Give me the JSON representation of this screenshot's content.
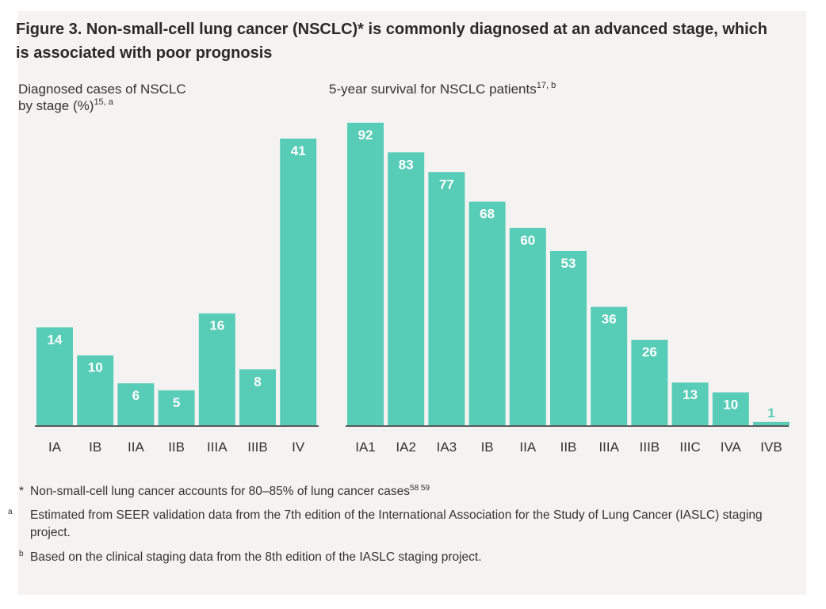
{
  "title": "Figure 3. Non-small-cell lung cancer (NSCLC)* is commonly diagnosed at an advanced stage, which is associated with poor prognosis",
  "colors": {
    "bar": "#57ccb6",
    "background": "#f5f3f1",
    "axis": "#2a2a2a",
    "label": "#ffffff",
    "tick": "#333333"
  },
  "chart_data": [
    {
      "type": "bar",
      "title": "Diagnosed cases of NSCLC by stage (%)",
      "title_sup": "15, a",
      "title_line1": "Diagnosed cases of NSCLC",
      "title_line2": "by stage (%)",
      "categories": [
        "IA",
        "IB",
        "IIA",
        "IIB",
        "IIIA",
        "IIIB",
        "IV"
      ],
      "values": [
        14,
        10,
        6,
        5,
        16,
        8,
        41
      ],
      "xlabel": "",
      "ylabel": "",
      "ylim": [
        0,
        41
      ]
    },
    {
      "type": "bar",
      "title": "5-year survival for NSCLC patients",
      "title_sup": "17, b",
      "categories": [
        "IA1",
        "IA2",
        "IA3",
        "IB",
        "IIA",
        "IIB",
        "IIIA",
        "IIIB",
        "IIIC",
        "IVA",
        "IVB"
      ],
      "values": [
        92,
        83,
        77,
        68,
        60,
        53,
        36,
        26,
        13,
        10,
        1
      ],
      "xlabel": "",
      "ylabel": "",
      "ylim": [
        0,
        92
      ]
    }
  ],
  "footnotes": {
    "star_mark": "*",
    "star_text": "Non-small-cell lung cancer accounts for 80–85% of lung cancer cases",
    "star_sup": "58 59",
    "a_mark": "a",
    "a_text": "Estimated from SEER validation data from the 7th edition of the International Association for the Study of Lung Cancer (IASLC) staging project.",
    "b_mark": "b",
    "b_text": "Based on the clinical staging data from the 8th edition of the IASLC staging project."
  }
}
